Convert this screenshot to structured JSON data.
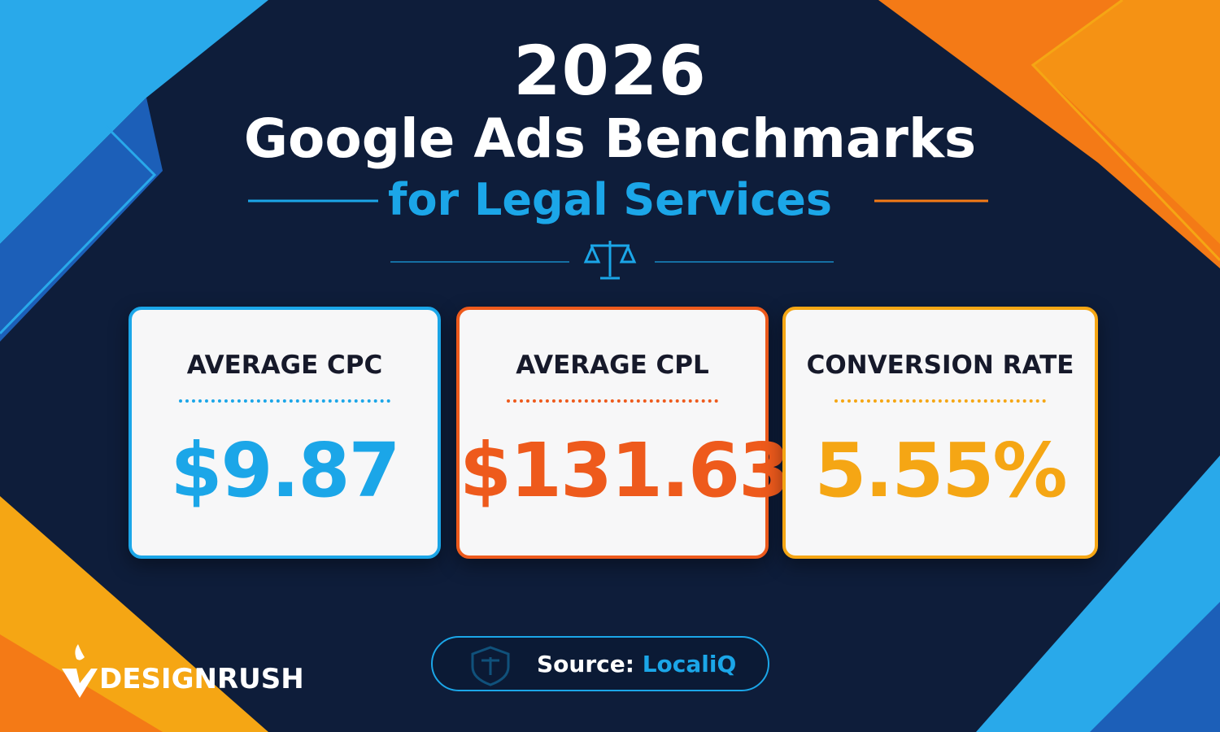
{
  "header": {
    "year": "2026",
    "title": "Google Ads Benchmarks",
    "subtitle": "for Legal Services"
  },
  "cards": [
    {
      "label": "AVERAGE CPC",
      "value": "$9.87",
      "color": "#1ba6e8"
    },
    {
      "label": "AVERAGE CPL",
      "value": "$131.63",
      "color": "#ee5a1c"
    },
    {
      "label": "CONVERSION RATE",
      "value": "5.55%",
      "color": "#f5a614"
    }
  ],
  "source": {
    "label": "Source:",
    "name": "LocaliQ"
  },
  "brand": "DESIGNRUSH"
}
